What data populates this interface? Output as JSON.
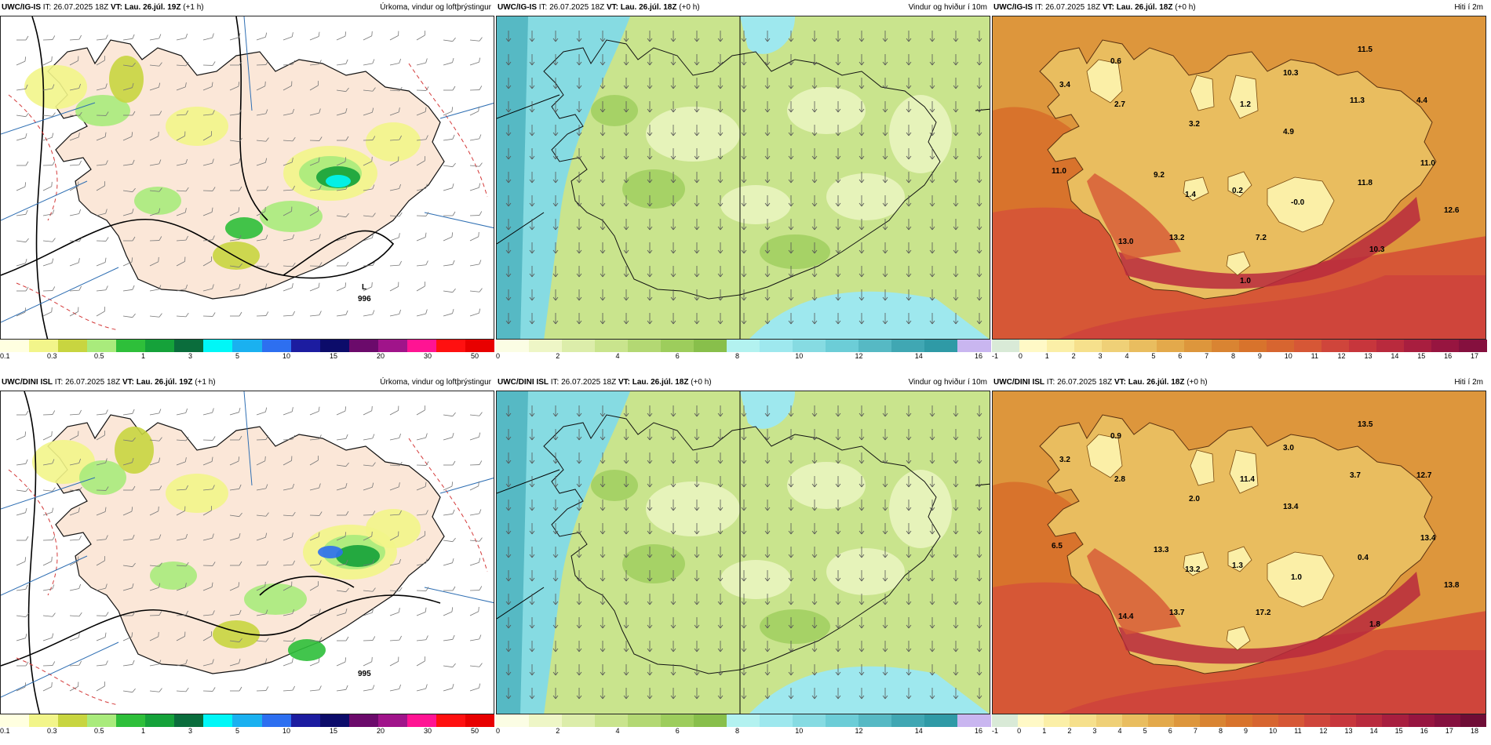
{
  "panels": [
    {
      "id": "p1",
      "type": "precip",
      "model": "UWC/IG-IS",
      "issue": "IT: 26.07.2025 18Z",
      "valid": "VT: Lau. 26.júl. 19Z",
      "lead": "(+1 h)",
      "title": "Úrkoma, vindur og loftþrýstingur",
      "colorbar": {
        "colors": [
          "#ffffe0",
          "#f2f58a",
          "#c8d540",
          "#a9eb7c",
          "#2ebf3a",
          "#15a23a",
          "#0a6d3c",
          "#00f7f7",
          "#1ab1f0",
          "#2d6ff0",
          "#1c1ca0",
          "#0c0c6a",
          "#6b0a6b",
          "#a0148a",
          "#ff1493",
          "#ff1010",
          "#e80000"
        ],
        "ticks": [
          "0.1",
          "0.3",
          "0.5",
          "1",
          "3",
          "5",
          "10",
          "15",
          "20",
          "30",
          "50"
        ]
      },
      "low": {
        "letter": "L",
        "value": "996"
      },
      "labels": []
    },
    {
      "id": "p2",
      "type": "wind",
      "model": "UWC/IG-IS",
      "issue": "IT: 26.07.2025 18Z",
      "valid": "VT: Lau. 26.júl. 18Z",
      "lead": "(+0 h)",
      "title": "Vindur og hviður í 10m",
      "colorbar": {
        "colors": [
          "#fbfde4",
          "#eef6c6",
          "#dcedaa",
          "#c9e48d",
          "#b3d873",
          "#9dcd5c",
          "#88bf4b",
          "#b3f2f0",
          "#9ee8ee",
          "#86dbe2",
          "#6ccdd7",
          "#56b9c4",
          "#40a7b3",
          "#2f9aa6",
          "#c9b6f0"
        ],
        "ticks": [
          "0",
          "2",
          "4",
          "6",
          "8",
          "10",
          "12",
          "14",
          "16"
        ]
      },
      "labels": []
    },
    {
      "id": "p3",
      "type": "temp",
      "model": "UWC/IG-IS",
      "issue": "IT: 26.07.2025 18Z",
      "valid": "VT: Lau. 26.júl. 18Z",
      "lead": "(+0 h)",
      "title": "Hiti í 2m",
      "colorbar": {
        "colors": [
          "#d9ead7",
          "#fff9c6",
          "#fbefa7",
          "#f6e08c",
          "#efd077",
          "#e9bd5f",
          "#e3a94b",
          "#dd963c",
          "#d98432",
          "#d8732c",
          "#d76530",
          "#d65736",
          "#cf453b",
          "#c7363c",
          "#b92a3d",
          "#a81e3f",
          "#971540",
          "#85103e"
        ],
        "ticks": [
          "-1",
          "0",
          "1",
          "2",
          "3",
          "4",
          "5",
          "6",
          "7",
          "8",
          "9",
          "10",
          "11",
          "12",
          "13",
          "14",
          "15",
          "16",
          "17"
        ]
      },
      "labels": [
        "0.6",
        "3.4",
        "2.7",
        "3.2",
        "1.2",
        "10.3",
        "11.5",
        "11.3",
        "4.4",
        "4.9",
        "11.0",
        "9.2",
        "1.4",
        "0.2",
        "11.8",
        "-0.0",
        "11.0",
        "12.6",
        "13.0",
        "13.2",
        "7.2",
        "10.3",
        "1.0"
      ]
    },
    {
      "id": "p4",
      "type": "precip",
      "model": "UWC/DINI ISL",
      "issue": "IT: 26.07.2025 18Z",
      "valid": "VT: Lau. 26.júl. 19Z",
      "lead": "(+1 h)",
      "title": "Úrkoma, vindur og loftþrýstingur",
      "colorbar": {
        "colors": [
          "#ffffe0",
          "#f2f58a",
          "#c8d540",
          "#a9eb7c",
          "#2ebf3a",
          "#15a23a",
          "#0a6d3c",
          "#00f7f7",
          "#1ab1f0",
          "#2d6ff0",
          "#1c1ca0",
          "#0c0c6a",
          "#6b0a6b",
          "#a0148a",
          "#ff1493",
          "#ff1010",
          "#e80000"
        ],
        "ticks": [
          "0.1",
          "0.3",
          "0.5",
          "1",
          "3",
          "5",
          "10",
          "15",
          "20",
          "30",
          "50"
        ]
      },
      "low": {
        "letter": "",
        "value": "995"
      },
      "labels": []
    },
    {
      "id": "p5",
      "type": "wind",
      "model": "UWC/DINI ISL",
      "issue": "IT: 26.07.2025 18Z",
      "valid": "VT: Lau. 26.júl. 18Z",
      "lead": "(+0 h)",
      "title": "Vindur og hviður í 10m",
      "colorbar": {
        "colors": [
          "#fbfde4",
          "#eef6c6",
          "#dcedaa",
          "#c9e48d",
          "#b3d873",
          "#9dcd5c",
          "#88bf4b",
          "#b3f2f0",
          "#9ee8ee",
          "#86dbe2",
          "#6ccdd7",
          "#56b9c4",
          "#40a7b3",
          "#2f9aa6",
          "#c9b6f0"
        ],
        "ticks": [
          "0",
          "2",
          "4",
          "6",
          "8",
          "10",
          "12",
          "14",
          "16"
        ]
      },
      "labels": []
    },
    {
      "id": "p6",
      "type": "temp",
      "model": "UWC/DINI ISL",
      "issue": "IT: 26.07.2025 18Z",
      "valid": "VT: Lau. 26.júl. 18Z",
      "lead": "(+0 h)",
      "title": "Hiti í 2m",
      "colorbar": {
        "colors": [
          "#d9ead7",
          "#fff9c6",
          "#fbefa7",
          "#f6e08c",
          "#efd077",
          "#e9bd5f",
          "#e3a94b",
          "#dd963c",
          "#d98432",
          "#d8732c",
          "#d76530",
          "#d65736",
          "#cf453b",
          "#c7363c",
          "#b92a3d",
          "#a81e3f",
          "#971540",
          "#85103e",
          "#6f0d36"
        ],
        "ticks": [
          "-1",
          "0",
          "1",
          "2",
          "3",
          "4",
          "5",
          "6",
          "7",
          "8",
          "9",
          "10",
          "11",
          "12",
          "13",
          "14",
          "15",
          "16",
          "17",
          "18"
        ]
      },
      "labels": [
        "0.9",
        "3.2",
        "2.8",
        "2.0",
        "11.4",
        "3.0",
        "13.5",
        "3.7",
        "12.7",
        "13.4",
        "6.5",
        "13.3",
        "13.2",
        "1.3",
        "0.4",
        "1.0",
        "13.4",
        "13.8",
        "14.4",
        "13.7",
        "17.2",
        "1.8"
      ]
    }
  ]
}
